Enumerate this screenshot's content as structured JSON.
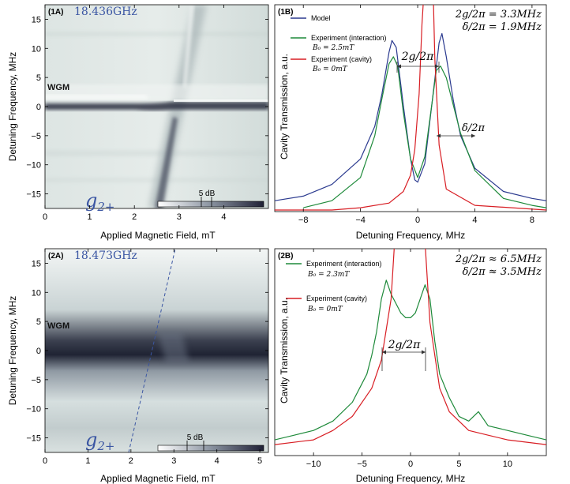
{
  "figure": {
    "panels": [
      {
        "id": "1A",
        "tag": "(1A)",
        "frequency_label": "18.436GHz",
        "xlabel": "Applied Magnetic Field, mT",
        "ylabel": "Detuning Frequency, MHz",
        "wgm_label": "WGM",
        "mode_label_base": "g",
        "mode_label_sub": "2+",
        "colorbar_label": "5 dB"
      },
      {
        "id": "1B",
        "tag": "(1B)",
        "xlabel": "Detuning Frequency, MHz",
        "ylabel": "Cavity Transmission, a.u.",
        "annotation_line1": "2g/2π = 3.3MHz",
        "annotation_line2": "δ/2π = 1.9MHz",
        "gap_label": "2g/2π",
        "delta_label": "δ/2π"
      },
      {
        "id": "2A",
        "tag": "(2A)",
        "frequency_label": "18.473GHz",
        "xlabel": "Applied Magnetic Field, mT",
        "ylabel": "Detuning Frequency, MHz",
        "wgm_label": "WGM",
        "mode_label_base": "g",
        "mode_label_sub": "2+",
        "colorbar_label": "5 dB"
      },
      {
        "id": "2B",
        "tag": "(2B)",
        "xlabel": "Detuning Frequency, MHz",
        "ylabel": "Cavity Transmission, a.u.",
        "annotation_line1": "2g/2π ≈ 6.5MHz",
        "annotation_line2": "δ/2π ≈ 3.5MHz",
        "gap_label": "2g/2π"
      }
    ]
  },
  "chart_data": [
    {
      "type": "heatmap",
      "panel": "1A",
      "xlabel": "Applied Magnetic Field, mT",
      "ylabel": "Detuning Frequency, MHz",
      "xlim": [
        0,
        5
      ],
      "ylim": [
        -17.5,
        17.5
      ],
      "xticks": [
        0,
        1,
        2,
        3,
        4
      ],
      "yticks": [
        -15,
        -10,
        -5,
        0,
        5,
        10,
        15
      ],
      "colorbar": {
        "label": "5 dB",
        "colors": [
          "#ffffff",
          "#1f2036"
        ]
      },
      "wgm_center_mhz": 0.8,
      "magnon_line": {
        "field_mT": [
          1.5,
          2.5
        ],
        "freq_MHz": [
          -17,
          17
        ]
      }
    },
    {
      "type": "line",
      "panel": "1B",
      "xlabel": "Detuning Frequency, MHz",
      "ylabel": "Cavity Transmission, a.u.",
      "xlim": [
        -10,
        9
      ],
      "xticks": [
        -8,
        -4,
        0,
        4,
        8
      ],
      "legend_position": "top-left",
      "series": [
        {
          "name": "Model",
          "color": "#2b3a8f",
          "x": [
            -10,
            -8,
            -6,
            -4,
            -3,
            -2.5,
            -2,
            -1.8,
            -1.5,
            -1,
            -0.5,
            -0.2,
            0,
            0.5,
            1,
            1.5,
            1.7,
            2,
            2.5,
            3,
            4,
            6,
            8,
            9
          ],
          "y": [
            0.04,
            0.06,
            0.11,
            0.22,
            0.36,
            0.5,
            0.68,
            0.73,
            0.7,
            0.45,
            0.22,
            0.13,
            0.12,
            0.2,
            0.46,
            0.72,
            0.76,
            0.66,
            0.47,
            0.32,
            0.18,
            0.08,
            0.05,
            0.04
          ]
        },
        {
          "name": "Experiment (interaction) B₀ = 2.5mT",
          "color": "#1e8a3a",
          "x": [
            -8,
            -6,
            -4,
            -3,
            -2.5,
            -2,
            -1.7,
            -1.4,
            -1,
            -0.5,
            0,
            0.5,
            1,
            1.3,
            1.6,
            2,
            2.5,
            3,
            4,
            6,
            8,
            9
          ],
          "y": [
            0.01,
            0.04,
            0.14,
            0.32,
            0.48,
            0.63,
            0.66,
            0.62,
            0.42,
            0.22,
            0.14,
            0.23,
            0.46,
            0.6,
            0.62,
            0.57,
            0.45,
            0.33,
            0.17,
            0.05,
            0.02,
            0.01
          ]
        },
        {
          "name": "Experiment (cavity) B₀ = 0mT",
          "color": "#d81e24",
          "x": [
            -10,
            -6,
            -4,
            -2,
            -1,
            -0.5,
            -0.2,
            0.1,
            0.3,
            0.6,
            0.8,
            1,
            1.2,
            1.5,
            2,
            4,
            9
          ],
          "y": [
            0.0,
            0.0,
            0.01,
            0.03,
            0.08,
            0.15,
            0.26,
            0.5,
            0.8,
            1.1,
            1.3,
            1.15,
            0.65,
            0.28,
            0.09,
            0.02,
            0.0
          ]
        }
      ]
    },
    {
      "type": "heatmap",
      "panel": "2A",
      "xlabel": "Applied Magnetic Field, mT",
      "ylabel": "Detuning Frequency, MHz",
      "xlim": [
        0,
        5.2
      ],
      "ylim": [
        -17.5,
        17.5
      ],
      "xticks": [
        0,
        1,
        2,
        3,
        4,
        5
      ],
      "yticks": [
        -15,
        -10,
        -5,
        0,
        5,
        10,
        15
      ],
      "colorbar": {
        "label": "5 dB",
        "colors": [
          "#ffffff",
          "#1f2036"
        ]
      },
      "wgm_center_mhz": -0.5,
      "magnon_line": {
        "field_mT": [
          1.8,
          2.95
        ],
        "freq_MHz": [
          -17.5,
          17.5
        ]
      }
    },
    {
      "type": "line",
      "panel": "2B",
      "xlabel": "Detuning Frequency, MHz",
      "ylabel": "Cavity Transmission, a.u.",
      "xlim": [
        -14,
        14
      ],
      "xticks": [
        -10,
        -5,
        0,
        5,
        10
      ],
      "legend_position": "top-left",
      "series": [
        {
          "name": "Experiment (interaction) B₀ = 2.3mT",
          "color": "#1e8a3a",
          "x": [
            -14,
            -12,
            -10,
            -8,
            -6,
            -4.5,
            -4,
            -3.5,
            -3,
            -2.5,
            -2,
            -1.5,
            -1,
            -0.5,
            0,
            0.5,
            1,
            1.5,
            2,
            2.5,
            3,
            4,
            5,
            6,
            7,
            8,
            10,
            12,
            14
          ],
          "y": [
            0.03,
            0.04,
            0.05,
            0.07,
            0.11,
            0.17,
            0.21,
            0.26,
            0.33,
            0.37,
            0.34,
            0.32,
            0.3,
            0.29,
            0.29,
            0.3,
            0.33,
            0.36,
            0.33,
            0.24,
            0.17,
            0.12,
            0.08,
            0.07,
            0.09,
            0.06,
            0.05,
            0.04,
            0.03
          ]
        },
        {
          "name": "Experiment (cavity) B₀ = 0mT",
          "color": "#d81e24",
          "x": [
            -14,
            -10,
            -8,
            -6,
            -4,
            -3,
            -2,
            -1.5,
            -1,
            -0.5,
            0,
            0.5,
            1,
            1.5,
            2,
            3,
            4,
            6,
            8,
            10,
            14
          ],
          "y": [
            0.02,
            0.03,
            0.05,
            0.08,
            0.14,
            0.2,
            0.33,
            0.5,
            0.85,
            1.3,
            1.5,
            1.3,
            0.8,
            0.45,
            0.28,
            0.14,
            0.09,
            0.05,
            0.04,
            0.03,
            0.02
          ]
        }
      ]
    }
  ]
}
